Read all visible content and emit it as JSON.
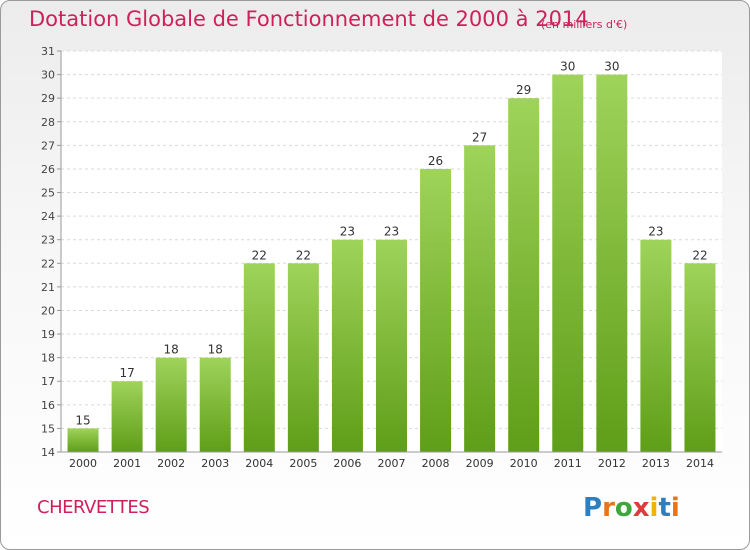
{
  "header": {
    "title": "Dotation Globale de Fonctionnement de 2000 à 2014",
    "subtitle": "(en milliers d'€)"
  },
  "footer": {
    "commune": "CHERVETTES",
    "logo_text": "Proxiti"
  },
  "colors": {
    "accent": "#d0205a",
    "bar_top": "#9fd35a",
    "bar_bottom": "#5f9e18"
  },
  "chart_data": {
    "type": "bar",
    "title": "Dotation Globale de Fonctionnement de 2000 à 2014",
    "subtitle": "(en milliers d'€)",
    "categories": [
      "2000",
      "2001",
      "2002",
      "2003",
      "2004",
      "2005",
      "2006",
      "2007",
      "2008",
      "2009",
      "2010",
      "2011",
      "2012",
      "2013",
      "2014"
    ],
    "values": [
      15,
      17,
      18,
      18,
      22,
      22,
      23,
      23,
      26,
      27,
      29,
      30,
      30,
      23,
      22
    ],
    "ylim": [
      14,
      31
    ],
    "yticks": [
      14,
      15,
      16,
      17,
      18,
      19,
      20,
      21,
      22,
      23,
      24,
      25,
      26,
      27,
      28,
      29,
      30,
      31
    ],
    "grid": true,
    "data_labels": true
  }
}
